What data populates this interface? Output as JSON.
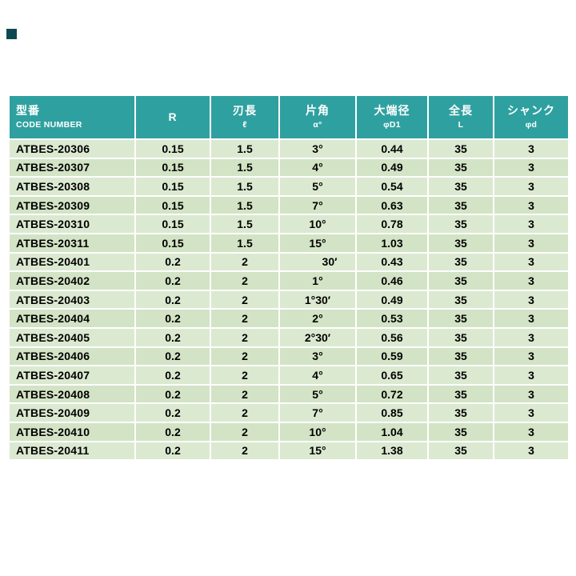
{
  "page": {
    "background": "#ffffff"
  },
  "corner_mark": {
    "color": "#0e4952"
  },
  "table": {
    "header_bg": "#2fa0a0",
    "row_bg_light": "#dce9d1",
    "row_bg_dark": "#d3e3c5",
    "columns": [
      {
        "id": "code",
        "line1": "型番",
        "line2": "CODE NUMBER"
      },
      {
        "id": "r",
        "line1": "R",
        "line2": ""
      },
      {
        "id": "flute",
        "line1": "刃長",
        "line2": "ℓ"
      },
      {
        "id": "angle",
        "line1": "片角",
        "line2": "α°"
      },
      {
        "id": "d1",
        "line1": "大端径",
        "line2": "φD1"
      },
      {
        "id": "len",
        "line1": "全長",
        "line2": "L"
      },
      {
        "id": "shank",
        "line1": "シャンク",
        "line2": "φd"
      }
    ],
    "rows": [
      [
        "ATBES-20306",
        "0.15",
        "1.5",
        "3°",
        "0.44",
        "35",
        "3"
      ],
      [
        "ATBES-20307",
        "0.15",
        "1.5",
        "4°",
        "0.49",
        "35",
        "3"
      ],
      [
        "ATBES-20308",
        "0.15",
        "1.5",
        "5°",
        "0.54",
        "35",
        "3"
      ],
      [
        "ATBES-20309",
        "0.15",
        "1.5",
        "7°",
        "0.63",
        "35",
        "3"
      ],
      [
        "ATBES-20310",
        "0.15",
        "1.5",
        "10°",
        "0.78",
        "35",
        "3"
      ],
      [
        "ATBES-20311",
        "0.15",
        "1.5",
        "15°",
        "1.03",
        "35",
        "3"
      ],
      [
        "ATBES-20401",
        "0.2",
        "2",
        "30′",
        "0.43",
        "35",
        "3"
      ],
      [
        "ATBES-20402",
        "0.2",
        "2",
        "1°",
        "0.46",
        "35",
        "3"
      ],
      [
        "ATBES-20403",
        "0.2",
        "2",
        "1°30′",
        "0.49",
        "35",
        "3"
      ],
      [
        "ATBES-20404",
        "0.2",
        "2",
        "2°",
        "0.53",
        "35",
        "3"
      ],
      [
        "ATBES-20405",
        "0.2",
        "2",
        "2°30′",
        "0.56",
        "35",
        "3"
      ],
      [
        "ATBES-20406",
        "0.2",
        "2",
        "3°",
        "0.59",
        "35",
        "3"
      ],
      [
        "ATBES-20407",
        "0.2",
        "2",
        "4°",
        "0.65",
        "35",
        "3"
      ],
      [
        "ATBES-20408",
        "0.2",
        "2",
        "5°",
        "0.72",
        "35",
        "3"
      ],
      [
        "ATBES-20409",
        "0.2",
        "2",
        "7°",
        "0.85",
        "35",
        "3"
      ],
      [
        "ATBES-20410",
        "0.2",
        "2",
        "10°",
        "1.04",
        "35",
        "3"
      ],
      [
        "ATBES-20411",
        "0.2",
        "2",
        "15°",
        "1.38",
        "35",
        "3"
      ]
    ]
  }
}
